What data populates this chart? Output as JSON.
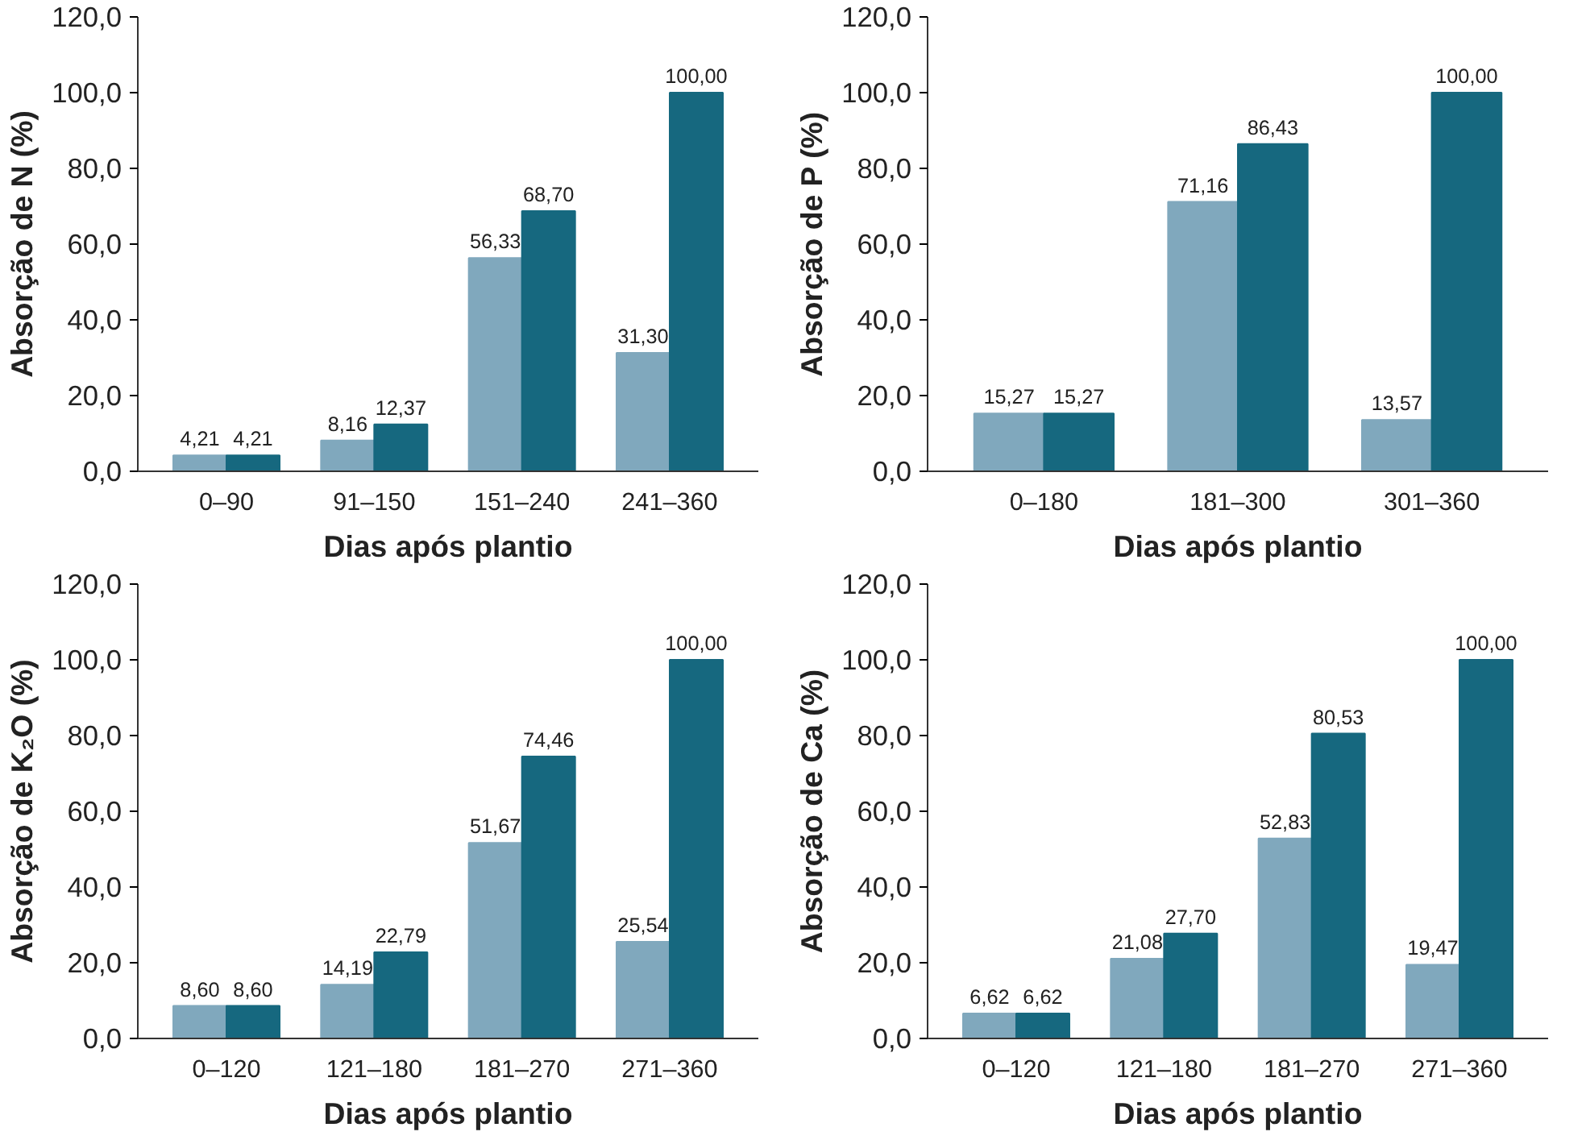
{
  "chart_data": [
    {
      "type": "bar",
      "xlabel": "Dias após plantio",
      "ylabel": "Absorção de N (%)",
      "categories": [
        "0–90",
        "91–150",
        "151–240",
        "241–360"
      ],
      "ylim": [
        0,
        120
      ],
      "yticks": [
        {
          "value": 0,
          "label": "0,0"
        },
        {
          "value": 20,
          "label": "20,0"
        },
        {
          "value": 40,
          "label": "40,0"
        },
        {
          "value": 60,
          "label": "60,0"
        },
        {
          "value": 80,
          "label": "80,0"
        },
        {
          "value": 100,
          "label": "100,0"
        },
        {
          "value": 120,
          "label": "120,0"
        }
      ],
      "grid": false,
      "series": [
        {
          "color": "#80a8bd",
          "values": [
            4.21,
            8.16,
            56.33,
            31.3
          ],
          "value_labels": [
            "4,21",
            "8,16",
            "56,33",
            "31,30"
          ]
        },
        {
          "color": "#16687f",
          "values": [
            4.21,
            12.37,
            68.7,
            100.0
          ],
          "value_labels": [
            "4,21",
            "12,37",
            "68,70",
            "100,00"
          ]
        }
      ]
    },
    {
      "type": "bar",
      "xlabel": "Dias após plantio",
      "ylabel": "Absorção de P (%)",
      "categories": [
        "0–180",
        "181–300",
        "301–360"
      ],
      "ylim": [
        0,
        120
      ],
      "yticks": [
        {
          "value": 0,
          "label": "0,0"
        },
        {
          "value": 20,
          "label": "20,0"
        },
        {
          "value": 40,
          "label": "40,0"
        },
        {
          "value": 60,
          "label": "60,0"
        },
        {
          "value": 80,
          "label": "80,0"
        },
        {
          "value": 100,
          "label": "100,0"
        },
        {
          "value": 120,
          "label": "120,0"
        }
      ],
      "grid": false,
      "series": [
        {
          "color": "#80a8bd",
          "values": [
            15.27,
            71.16,
            13.57
          ],
          "value_labels": [
            "15,27",
            "71,16",
            "13,57"
          ]
        },
        {
          "color": "#16687f",
          "values": [
            15.27,
            86.43,
            100.0
          ],
          "value_labels": [
            "15,27",
            "86,43",
            "100,00"
          ]
        }
      ]
    },
    {
      "type": "bar",
      "xlabel": "Dias após plantio",
      "ylabel": "Absorção de K₂O (%)",
      "categories": [
        "0–120",
        "121–180",
        "181–270",
        "271–360"
      ],
      "ylim": [
        0,
        120
      ],
      "yticks": [
        {
          "value": 0,
          "label": "0,0"
        },
        {
          "value": 20,
          "label": "20,0"
        },
        {
          "value": 40,
          "label": "40,0"
        },
        {
          "value": 60,
          "label": "60,0"
        },
        {
          "value": 80,
          "label": "80,0"
        },
        {
          "value": 100,
          "label": "100,0"
        },
        {
          "value": 120,
          "label": "120,0"
        }
      ],
      "grid": false,
      "series": [
        {
          "color": "#80a8bd",
          "values": [
            8.6,
            14.19,
            51.67,
            25.54
          ],
          "value_labels": [
            "8,60",
            "14,19",
            "51,67",
            "25,54"
          ]
        },
        {
          "color": "#16687f",
          "values": [
            8.6,
            22.79,
            74.46,
            100.0
          ],
          "value_labels": [
            "8,60",
            "22,79",
            "74,46",
            "100,00"
          ]
        }
      ]
    },
    {
      "type": "bar",
      "xlabel": "Dias após plantio",
      "ylabel": "Absorção de Ca (%)",
      "categories": [
        "0–120",
        "121–180",
        "181–270",
        "271–360"
      ],
      "ylim": [
        0,
        120
      ],
      "yticks": [
        {
          "value": 0,
          "label": "0,0"
        },
        {
          "value": 20,
          "label": "20,0"
        },
        {
          "value": 40,
          "label": "40,0"
        },
        {
          "value": 60,
          "label": "60,0"
        },
        {
          "value": 80,
          "label": "80,0"
        },
        {
          "value": 100,
          "label": "100,0"
        },
        {
          "value": 120,
          "label": "120,0"
        }
      ],
      "grid": false,
      "series": [
        {
          "color": "#80a8bd",
          "values": [
            6.62,
            21.08,
            52.83,
            19.47
          ],
          "value_labels": [
            "6,62",
            "21,08",
            "52,83",
            "19,47"
          ]
        },
        {
          "color": "#16687f",
          "values": [
            6.62,
            27.7,
            80.53,
            100.0
          ],
          "value_labels": [
            "6,62",
            "27,70",
            "80,53",
            "100,00"
          ]
        }
      ]
    }
  ]
}
